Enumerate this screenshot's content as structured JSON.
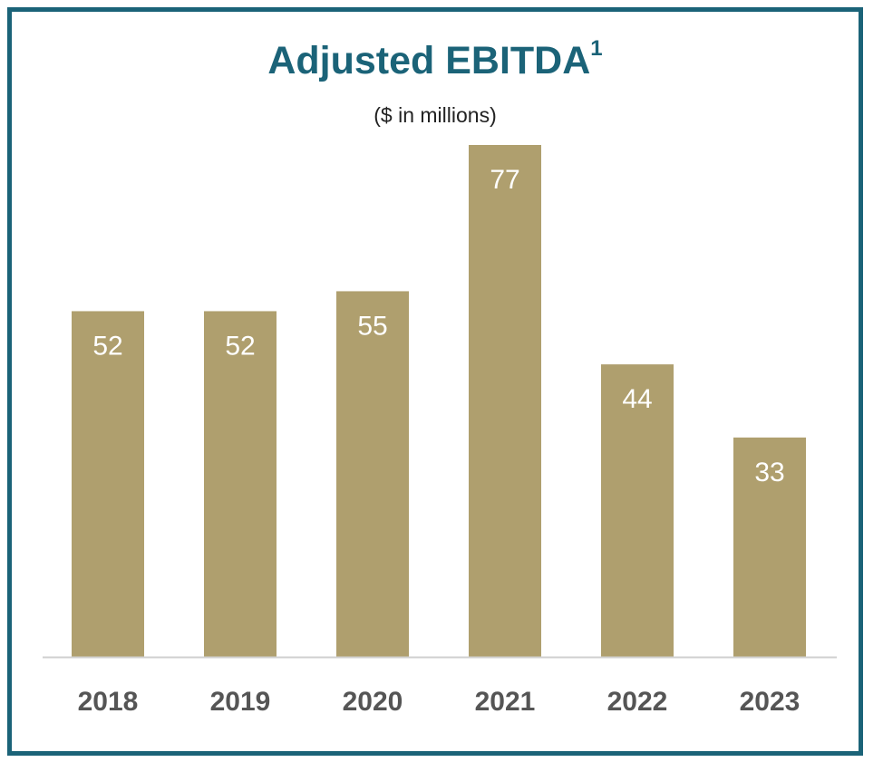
{
  "chart_data": {
    "type": "bar",
    "title": "Adjusted EBITDA",
    "title_footnote": "1",
    "subtitle": "($ in millions)",
    "categories": [
      "2018",
      "2019",
      "2020",
      "2021",
      "2022",
      "2023"
    ],
    "values": [
      52,
      52,
      55,
      77,
      44,
      33
    ],
    "data_labels": [
      "52",
      "52",
      "55",
      "77",
      "44",
      "33"
    ],
    "xlabel": "",
    "ylabel": "",
    "ylim": [
      0,
      77
    ],
    "grid": false,
    "legend": "none",
    "bar_color": "#af9f6e",
    "axis_color": "#d0d0d0"
  },
  "colors": {
    "frame": "#1b6378",
    "title": "#1b6378",
    "tick_label": "#555555"
  }
}
